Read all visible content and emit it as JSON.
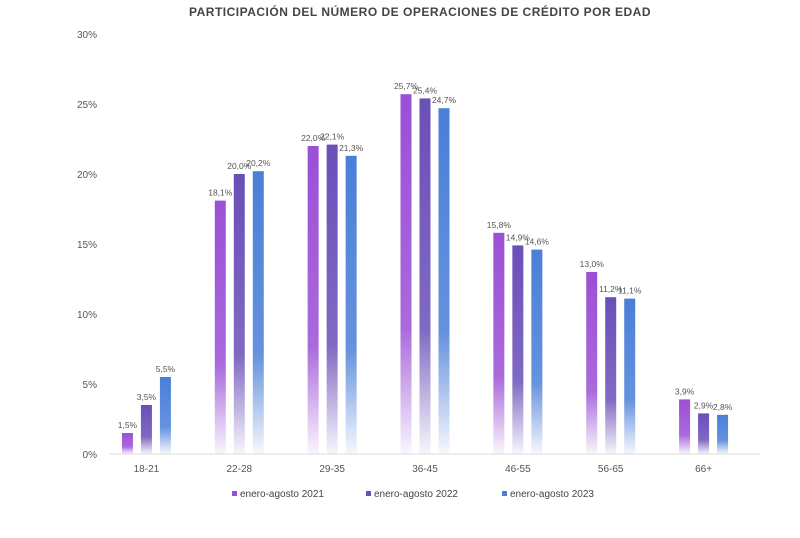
{
  "chart_data": {
    "type": "bar",
    "title": "PARTICIPACIÓN DEL NÚMERO DE OPERACIONES DE CRÉDITO POR EDAD",
    "xlabel": "",
    "ylabel": "",
    "ylim": [
      0,
      30
    ],
    "yticks": [
      "0%",
      "5%",
      "10%",
      "15%",
      "20%",
      "25%",
      "30%"
    ],
    "categories": [
      "18-21",
      "22-28",
      "29-35",
      "36-45",
      "46-55",
      "56-65",
      "66+"
    ],
    "series": [
      {
        "name": "enero-agosto 2021",
        "color": "#9b4fd6",
        "values": [
          1.5,
          18.1,
          22.0,
          25.7,
          15.8,
          13.0,
          3.9
        ],
        "labels": [
          "1,5%",
          "18,1%",
          "22,0%",
          "25,7%",
          "15,8%",
          "13,0%",
          "3,9%"
        ]
      },
      {
        "name": "enero-agosto 2022",
        "color": "#6a4fb8",
        "values": [
          3.5,
          20.0,
          22.1,
          25.4,
          14.9,
          11.2,
          2.9
        ],
        "labels": [
          "3,5%",
          "20,0%",
          "22,1%",
          "25,4%",
          "14,9%",
          "11,2%",
          "2,9%"
        ]
      },
      {
        "name": "enero-agosto 2023",
        "color": "#4a7fd8",
        "values": [
          5.5,
          20.2,
          21.3,
          24.7,
          14.6,
          11.1,
          2.8
        ],
        "labels": [
          "5,5%",
          "20,2%",
          "21,3%",
          "24,7%",
          "14,6%",
          "11,1%",
          "2,8%"
        ]
      }
    ],
    "grid": false,
    "legend": "bottom"
  }
}
